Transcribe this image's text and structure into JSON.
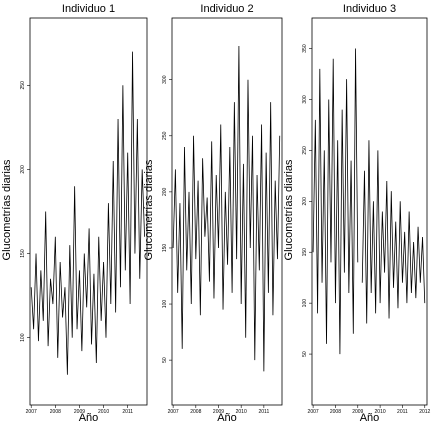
{
  "chart_data": [
    {
      "type": "line",
      "title": "Individuo 1",
      "x_label": "Año",
      "y_label": "Glucometrías  diarias",
      "x": [
        2007,
        2007.1,
        2007.2,
        2007.3,
        2007.4,
        2007.5,
        2007.6,
        2007.7,
        2007.8,
        2007.9,
        2008,
        2008.1,
        2008.2,
        2008.3,
        2008.4,
        2008.5,
        2008.6,
        2008.7,
        2008.8,
        2008.9,
        2009,
        2009.1,
        2009.2,
        2009.3,
        2009.4,
        2009.5,
        2009.6,
        2009.7,
        2009.8,
        2009.9,
        2010,
        2010.1,
        2010.2,
        2010.3,
        2010.4,
        2010.5,
        2010.6,
        2010.7,
        2010.8,
        2010.9,
        2011,
        2011.1,
        2011.2,
        2011.3,
        2011.4,
        2011.5,
        2011.6,
        2011.7
      ],
      "series": [
        {
          "color": "#000000",
          "values": [
            130,
            105,
            150,
            98,
            140,
            110,
            175,
            95,
            135,
            120,
            160,
            88,
            145,
            112,
            130,
            78,
            155,
            100,
            190,
            105,
            140,
            92,
            150,
            118,
            165,
            96,
            138,
            85,
            160,
            110,
            145,
            100,
            180,
            120,
            205,
            115,
            230,
            130,
            250,
            140,
            210,
            120,
            270,
            150,
            230,
            135,
            200,
            160
          ]
        }
      ],
      "xlim": [
        2006.95,
        2011.8
      ],
      "xticks": [
        2007,
        2008,
        2009,
        2010,
        2011
      ],
      "ylim": [
        60,
        290
      ],
      "yticks": [
        100,
        150,
        200,
        250
      ]
    },
    {
      "type": "line",
      "title": "Individuo 2",
      "x_label": "Año",
      "y_label": "Glucometrías  diarias",
      "x": [
        2007,
        2007.1,
        2007.2,
        2007.3,
        2007.4,
        2007.5,
        2007.6,
        2007.7,
        2007.8,
        2007.9,
        2008,
        2008.1,
        2008.2,
        2008.3,
        2008.4,
        2008.5,
        2008.6,
        2008.7,
        2008.8,
        2008.9,
        2009,
        2009.1,
        2009.2,
        2009.3,
        2009.4,
        2009.5,
        2009.6,
        2009.7,
        2009.8,
        2009.9,
        2010,
        2010.1,
        2010.2,
        2010.3,
        2010.4,
        2010.5,
        2010.6,
        2010.7,
        2010.8,
        2010.9,
        2011,
        2011.1,
        2011.2,
        2011.3,
        2011.4,
        2011.5,
        2011.6,
        2011.7
      ],
      "series": [
        {
          "color": "#000000",
          "values": [
            150,
            220,
            110,
            190,
            60,
            240,
            130,
            200,
            100,
            250,
            140,
            210,
            90,
            230,
            160,
            195,
            120,
            245,
            105,
            215,
            150,
            260,
            95,
            200,
            135,
            240,
            110,
            280,
            140,
            330,
            100,
            225,
            70,
            300,
            150,
            250,
            50,
            215,
            130,
            260,
            40,
            235,
            110,
            280,
            90,
            210,
            140,
            250
          ]
        }
      ],
      "xlim": [
        2006.95,
        2011.8
      ],
      "xticks": [
        2007,
        2008,
        2009,
        2010,
        2011
      ],
      "ylim": [
        10,
        355
      ],
      "yticks": [
        50,
        100,
        150,
        200,
        250,
        300
      ]
    },
    {
      "type": "line",
      "title": "Individuo 3",
      "x_label": "Año",
      "y_label": "Glucometrías  diarias",
      "x": [
        2007,
        2007.1,
        2007.2,
        2007.3,
        2007.4,
        2007.5,
        2007.6,
        2007.7,
        2007.8,
        2007.9,
        2008,
        2008.1,
        2008.2,
        2008.3,
        2008.4,
        2008.5,
        2008.6,
        2008.7,
        2008.8,
        2008.9,
        2009,
        2009.1,
        2009.2,
        2009.3,
        2009.4,
        2009.5,
        2009.6,
        2009.7,
        2009.8,
        2009.9,
        2010,
        2010.1,
        2010.2,
        2010.3,
        2010.4,
        2010.5,
        2010.6,
        2010.7,
        2010.8,
        2010.9,
        2011,
        2011.1,
        2011.2,
        2011.3,
        2011.4,
        2011.5,
        2011.6,
        2011.7,
        2011.8,
        2011.9,
        2012
      ],
      "series": [
        {
          "color": "#000000",
          "values": [
            150,
            280,
            90,
            330,
            120,
            250,
            60,
            300,
            140,
            340,
            100,
            260,
            50,
            290,
            130,
            320,
            110,
            240,
            70,
            350,
            140,
            null,
            120,
            230,
            80,
            260,
            110,
            200,
            90,
            250,
            100,
            190,
            130,
            220,
            85,
            210,
            115,
            180,
            95,
            200,
            120,
            170,
            100,
            190,
            110,
            160,
            105,
            175,
            120,
            165,
            100
          ]
        }
      ],
      "xlim": [
        2006.95,
        2012.1
      ],
      "xticks": [
        2007,
        2008,
        2009,
        2010,
        2011,
        2012
      ],
      "ylim": [
        0,
        380
      ],
      "yticks": [
        50,
        100,
        150,
        200,
        250,
        300,
        350
      ]
    }
  ]
}
